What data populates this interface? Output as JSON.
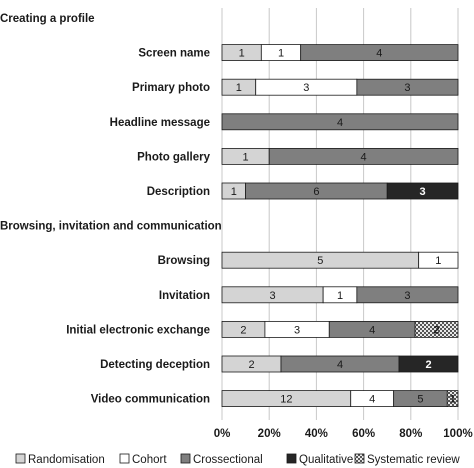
{
  "chart_data": {
    "type": "bar",
    "orientation": "horizontal",
    "stacking": "percent",
    "title": "",
    "xlabel": "",
    "ylabel": "",
    "xlim": [
      0,
      100
    ],
    "x_ticks": [
      "0%",
      "20%",
      "40%",
      "60%",
      "80%",
      "100%"
    ],
    "grid": "vertical",
    "legend_position": "bottom",
    "categories": [
      {
        "label": "Creating a profile",
        "is_header": true
      },
      {
        "label": "Screen name",
        "is_header": false
      },
      {
        "label": "Primary photo",
        "is_header": false
      },
      {
        "label": "Headline message",
        "is_header": false
      },
      {
        "label": "Photo gallery",
        "is_header": false
      },
      {
        "label": "Description",
        "is_header": false
      },
      {
        "label": "Browsing, invitation and communication",
        "is_header": true
      },
      {
        "label": "Browsing",
        "is_header": false
      },
      {
        "label": "Invitation",
        "is_header": false
      },
      {
        "label": "Initial electronic exchange",
        "is_header": false
      },
      {
        "label": "Detecting deception",
        "is_header": false
      },
      {
        "label": "Video communication",
        "is_header": false
      }
    ],
    "series": [
      {
        "name": "Randomisation",
        "color": "#d4d4d4",
        "text_color": "#1a1a1a",
        "values": [
          null,
          1,
          1,
          0,
          1,
          1,
          null,
          5,
          3,
          2,
          2,
          12
        ]
      },
      {
        "name": "Cohort",
        "color": "#ffffff",
        "text_color": "#1a1a1a",
        "values": [
          null,
          1,
          3,
          0,
          0,
          0,
          null,
          1,
          1,
          3,
          0,
          4
        ]
      },
      {
        "name": "Crossectional",
        "color": "#7f7f7f",
        "text_color": "#1a1a1a",
        "values": [
          null,
          4,
          3,
          4,
          4,
          6,
          null,
          0,
          3,
          4,
          4,
          5
        ]
      },
      {
        "name": "Qualitative",
        "color": "#262626",
        "text_color": "#ffffff",
        "values": [
          null,
          0,
          0,
          0,
          0,
          3,
          null,
          0,
          0,
          0,
          2,
          0
        ]
      },
      {
        "name": "Systematic review",
        "color": "#bfbfbf",
        "pattern": "checker",
        "text_color": "#1a1a1a",
        "values": [
          null,
          0,
          0,
          0,
          0,
          0,
          null,
          0,
          0,
          2,
          0,
          1
        ]
      }
    ]
  }
}
